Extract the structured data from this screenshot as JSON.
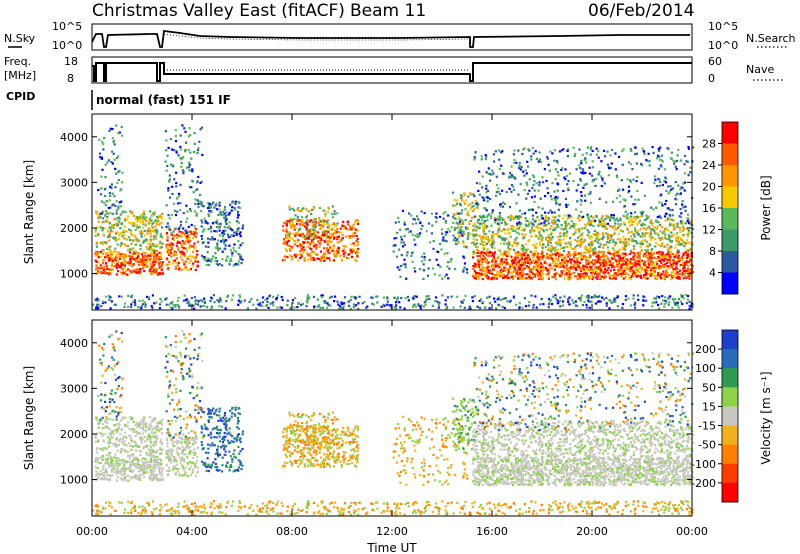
{
  "header": {
    "title": "Christmas Valley East (fitACF)",
    "beam": "Beam 11",
    "date": "06/Feb/2014"
  },
  "sky_panel": {
    "left_label": "N.Sky",
    "right_label": "N.Search",
    "ticks": [
      "10^5",
      "10^0"
    ],
    "right_ticks": [
      "10^5",
      "10^0"
    ]
  },
  "freq_panel": {
    "left_label_line1": "Freq.",
    "left_label_line2": "[MHz]",
    "left_ticks": [
      "18",
      "8"
    ],
    "right_label": "Nave",
    "right_ticks": [
      "60",
      "0"
    ]
  },
  "cpid": {
    "label": "CPID",
    "mode": "normal (fast) 151 IF"
  },
  "chart_data": [
    {
      "type": "heatmap",
      "panel": "power",
      "ylabel": "Slant Range [km]",
      "yticks": [
        "1000",
        "2000",
        "3000",
        "4000"
      ],
      "ylim": [
        200,
        4500
      ],
      "xlim": [
        "00:00",
        "24:00"
      ],
      "colorbar": {
        "label": "Power [dB]",
        "ticks": [
          "28",
          "24",
          "20",
          "16",
          "12",
          "8",
          "4"
        ],
        "colors": [
          "#ff0000",
          "#ff5a00",
          "#ff9600",
          "#f5c800",
          "#5cb85c",
          "#3a9a6a",
          "#2c5aa0",
          "#0000ff"
        ]
      }
    },
    {
      "type": "heatmap",
      "panel": "velocity",
      "ylabel": "Slant Range [km]",
      "yticks": [
        "1000",
        "2000",
        "3000",
        "4000"
      ],
      "ylim": [
        200,
        4500
      ],
      "xlim": [
        "00:00",
        "24:00"
      ],
      "colorbar": {
        "label": "Velocity [m s⁻¹]",
        "ticks": [
          "200",
          "100",
          "50",
          "15",
          "-15",
          "-50",
          "-100",
          "-200"
        ],
        "colors": [
          "#1e3fc8",
          "#2a6cb8",
          "#2f9a50",
          "#8ed24c",
          "#c8c8c0",
          "#f0b020",
          "#ff8000",
          "#ff3c00",
          "#ff0000"
        ]
      }
    }
  ],
  "x_axis": {
    "ticks": [
      "00:00",
      "04:00",
      "08:00",
      "12:00",
      "16:00",
      "20:00",
      "00:00"
    ],
    "label": "Time UT"
  }
}
